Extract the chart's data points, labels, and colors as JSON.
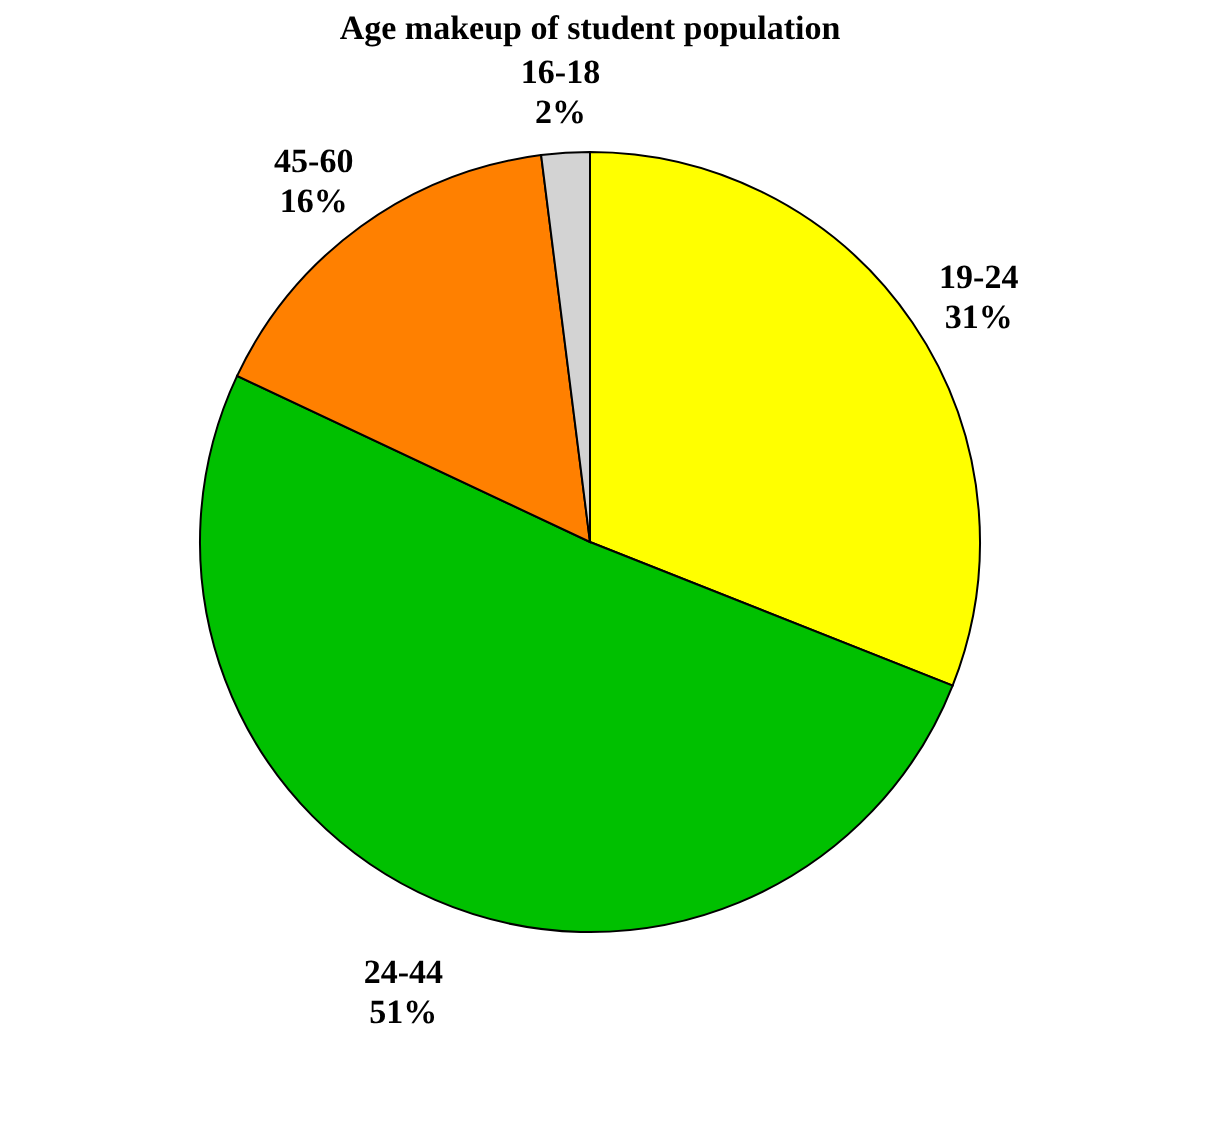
{
  "chart_data": {
    "type": "pie",
    "title": "Age makeup of student population",
    "categories": [
      "19-24",
      "24-44",
      "45-60",
      "16-18"
    ],
    "values": [
      31,
      51,
      16,
      2
    ],
    "colors": [
      "#ffff00",
      "#00c000",
      "#ff8000",
      "#d3d3d3"
    ],
    "value_labels": [
      "31%",
      "51%",
      "16%",
      "2%"
    ],
    "legend": false
  }
}
